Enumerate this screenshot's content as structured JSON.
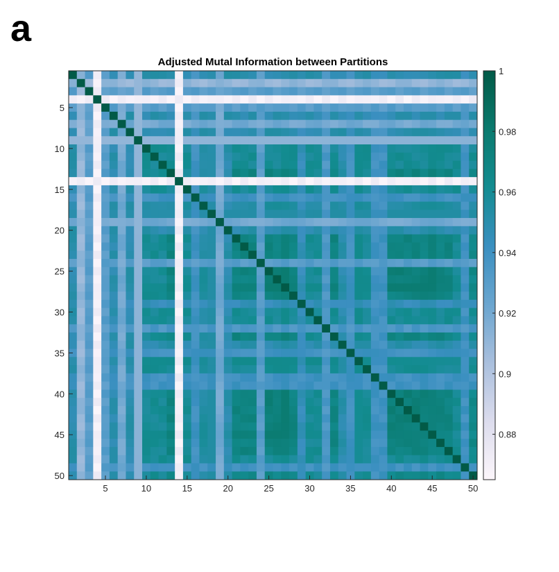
{
  "panel_letter": "a",
  "chart_data": {
    "type": "heatmap",
    "title": "Adjusted Mutal Information between Partitions",
    "xlabel": "",
    "ylabel": "",
    "n": 50,
    "x_ticks": [
      5,
      10,
      15,
      20,
      25,
      30,
      35,
      40,
      45,
      50
    ],
    "y_ticks": [
      5,
      10,
      15,
      20,
      25,
      30,
      35,
      40,
      45,
      50
    ],
    "colorbar": {
      "min": 0.865,
      "max": 1.0,
      "ticks": [
        0.88,
        0.9,
        0.92,
        0.94,
        0.96,
        0.98,
        1
      ],
      "tick_labels": [
        "0.88",
        "0.9",
        "0.92",
        "0.94",
        "0.96",
        "0.98",
        "1"
      ]
    },
    "colormap": [
      "#fcf6fb",
      "#dcdced",
      "#a9bfdd",
      "#6aa5cf",
      "#3a8fc0",
      "#138c91",
      "#0a7a6e",
      "#025a47"
    ],
    "row_quality": [
      0.95,
      0.91,
      0.93,
      0.87,
      0.93,
      0.95,
      0.92,
      0.95,
      0.91,
      0.96,
      0.96,
      0.96,
      0.97,
      0.87,
      0.96,
      0.94,
      0.955,
      0.95,
      0.92,
      0.95,
      0.97,
      0.97,
      0.97,
      0.93,
      0.975,
      0.975,
      0.975,
      0.97,
      0.945,
      0.96,
      0.96,
      0.935,
      0.97,
      0.95,
      0.94,
      0.96,
      0.96,
      0.94,
      0.94,
      0.975,
      0.975,
      0.975,
      0.975,
      0.975,
      0.975,
      0.97,
      0.97,
      0.96,
      0.94,
      0.965
    ],
    "diagonal": 1.0
  }
}
